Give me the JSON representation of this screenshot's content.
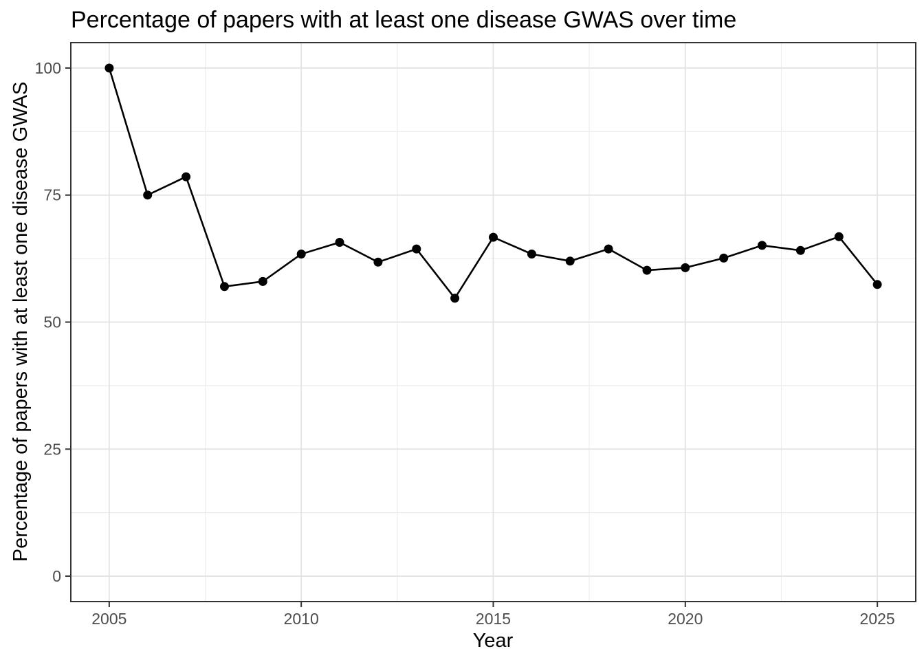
{
  "window": {
    "background_color": "#ffffff"
  },
  "chart_data": {
    "type": "line",
    "title": "Percentage of papers with at least one disease GWAS over time",
    "xlabel": "Year",
    "ylabel": "Percentage of papers with at least one disease GWAS",
    "x": [
      2005,
      2006,
      2007,
      2008,
      2009,
      2010,
      2011,
      2012,
      2013,
      2014,
      2015,
      2016,
      2017,
      2018,
      2019,
      2020,
      2021,
      2022,
      2023,
      2024,
      2025
    ],
    "series": [
      {
        "name": "Percentage of papers with at least one disease GWAS",
        "values": [
          100,
          75,
          78.6,
          57,
          58,
          63.4,
          65.7,
          61.8,
          64.4,
          54.7,
          66.7,
          63.4,
          62,
          64.4,
          60.2,
          60.7,
          62.6,
          65.1,
          64.1,
          66.8,
          57.4
        ]
      }
    ],
    "xlim": [
      2004,
      2026
    ],
    "ylim": [
      -5,
      105
    ],
    "x_ticks": [
      2005,
      2010,
      2015,
      2020,
      2025
    ],
    "y_ticks": [
      0,
      25,
      50,
      75,
      100
    ],
    "x_minor_gridlines": [
      2007.5,
      2012.5,
      2017.5,
      2022.5
    ],
    "y_minor_gridlines": [
      12.5,
      37.5,
      62.5,
      87.5
    ],
    "grid": "on",
    "legend": "none",
    "marker": "filled-circle",
    "colors": {
      "line": "#000000",
      "point": "#000000",
      "grid_major": "#e3e3e3",
      "grid_minor": "#ededed",
      "panel_border": "#333333",
      "tick_mark": "#333333",
      "tick_label": "#4d4d4d",
      "text": "#000000",
      "panel_background": "#ffffff"
    }
  }
}
